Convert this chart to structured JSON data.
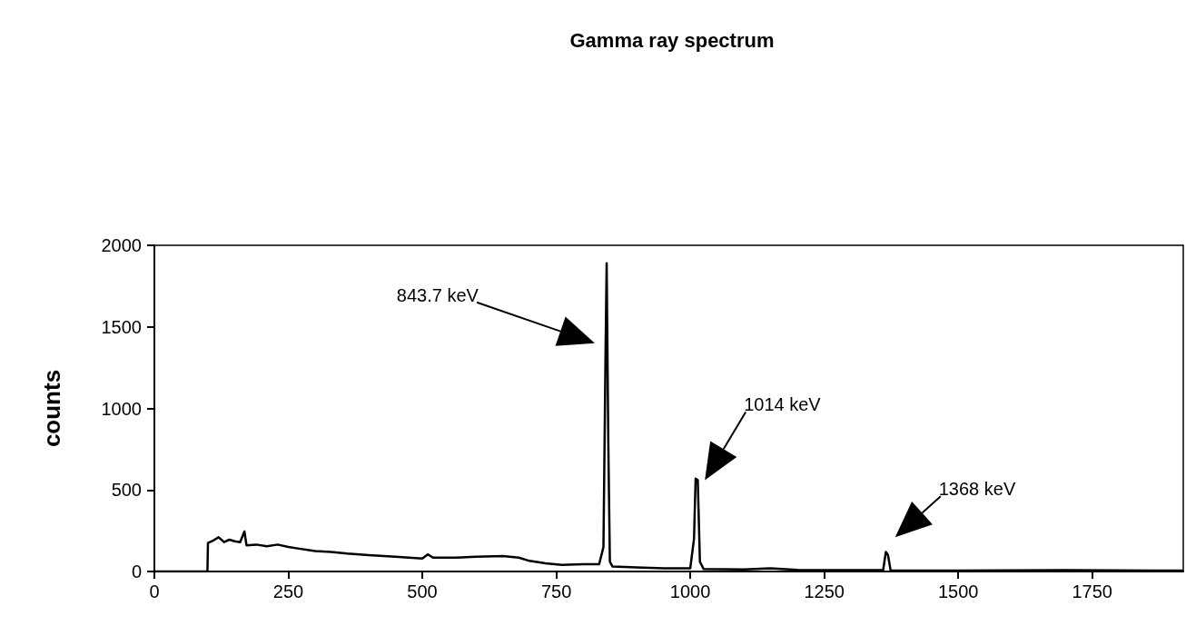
{
  "chart_data": {
    "type": "line",
    "title": "Gamma ray spectrum",
    "ylabel": "counts",
    "x": [
      0,
      99,
      100,
      110,
      120,
      130,
      140,
      150,
      160,
      168,
      172,
      190,
      210,
      230,
      250,
      270,
      300,
      330,
      360,
      400,
      450,
      500,
      510,
      520,
      560,
      600,
      650,
      680,
      700,
      730,
      760,
      800,
      830,
      838,
      842,
      844,
      847,
      850,
      855,
      900,
      950,
      1000,
      1007,
      1010,
      1014,
      1018,
      1025,
      1100,
      1150,
      1200,
      1300,
      1360,
      1365,
      1369,
      1374,
      1500,
      1700,
      1920
    ],
    "series": [
      {
        "color": "#000000",
        "values": [
          0,
          0,
          175,
          190,
          210,
          180,
          195,
          185,
          180,
          245,
          160,
          165,
          155,
          165,
          150,
          140,
          125,
          120,
          110,
          100,
          90,
          80,
          105,
          85,
          85,
          90,
          95,
          85,
          65,
          50,
          40,
          45,
          45,
          150,
          1370,
          1890,
          800,
          60,
          30,
          25,
          20,
          20,
          200,
          570,
          560,
          60,
          15,
          12,
          20,
          10,
          8,
          10,
          120,
          100,
          5,
          5,
          8,
          5
        ]
      }
    ],
    "xlim": [
      0,
      1920
    ],
    "xticks": [
      0,
      250,
      500,
      750,
      1000,
      1250,
      1500,
      1750
    ],
    "ylim": [
      0,
      2000
    ],
    "yticks": [
      0,
      500,
      1000,
      1500,
      2000
    ],
    "grid": false,
    "marker": "none",
    "line_style": "solid",
    "annotations": [
      "843.7 keV",
      "1014 keV",
      "1368 keV"
    ]
  }
}
